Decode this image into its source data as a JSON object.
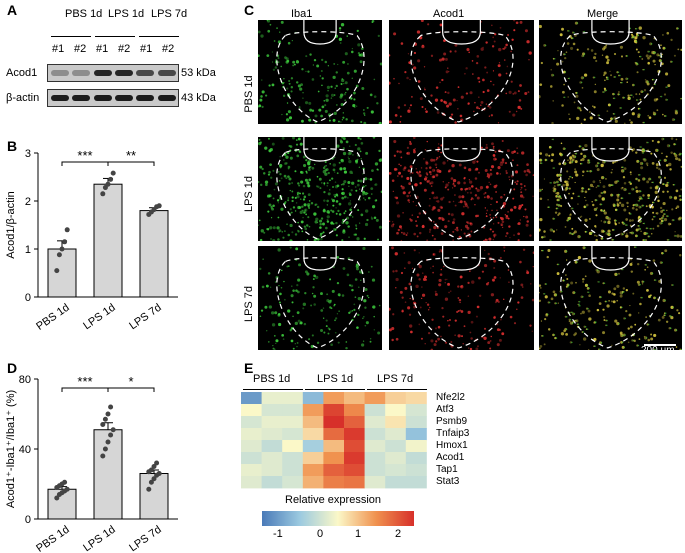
{
  "panel_letters": {
    "a": "A",
    "b": "B",
    "c": "C",
    "d": "D",
    "e": "E"
  },
  "western": {
    "groups": [
      "PBS 1d",
      "LPS 1d",
      "LPS 7d"
    ],
    "lanes": [
      "#1",
      "#2",
      "#1",
      "#2",
      "#1",
      "#2"
    ],
    "rows": [
      {
        "label": "Acod1",
        "kda": "53 kDa",
        "intensity": [
          0.35,
          0.35,
          0.95,
          0.95,
          0.75,
          0.75
        ]
      },
      {
        "label": "β-actin",
        "kda": "43 kDa",
        "intensity": [
          1,
          1,
          1,
          1,
          1,
          1
        ]
      }
    ]
  },
  "chart_data": [
    {
      "type": "bar",
      "panel": "B",
      "categories": [
        "PBS 1d",
        "LPS 1d",
        "LPS 7d"
      ],
      "values": [
        1.0,
        2.35,
        1.8
      ],
      "errors": [
        0.17,
        0.12,
        0.06
      ],
      "points": [
        [
          0.55,
          0.88,
          1.0,
          1.15,
          1.4
        ],
        [
          2.15,
          2.28,
          2.35,
          2.45,
          2.58
        ],
        [
          1.72,
          1.77,
          1.82,
          1.88,
          1.9
        ]
      ],
      "ylabel": "Acod1/β-actin",
      "ylim": [
        0,
        3
      ],
      "yticks": [
        "0",
        "1",
        "2",
        "3"
      ],
      "significance": [
        {
          "pair": [
            0,
            1
          ],
          "label": "***"
        },
        {
          "pair": [
            1,
            2
          ],
          "label": "**"
        }
      ]
    },
    {
      "type": "bar",
      "panel": "D",
      "categories": [
        "PBS 1d",
        "LPS 1d",
        "LPS 7d"
      ],
      "values": [
        17,
        51,
        26
      ],
      "errors": [
        1.5,
        4,
        2
      ],
      "points": [
        [
          12,
          14,
          15,
          16,
          17,
          18,
          19,
          20,
          21
        ],
        [
          36,
          40,
          44,
          48,
          51,
          54,
          57,
          60,
          64
        ],
        [
          17,
          21,
          23,
          25,
          26,
          27,
          28,
          30,
          32
        ]
      ],
      "ylabel": "Acod1⁺-Iba1⁺/Iba1⁺ (%)",
      "ylim": [
        0,
        80
      ],
      "yticks": [
        "0",
        "40",
        "80"
      ],
      "significance": [
        {
          "pair": [
            0,
            1
          ],
          "label": "***"
        },
        {
          "pair": [
            1,
            2
          ],
          "label": "*"
        }
      ]
    },
    {
      "type": "heatmap",
      "panel": "E",
      "groups": [
        "PBS 1d",
        "LPS 1d",
        "LPS 7d"
      ],
      "genes": [
        "Nfe2l2",
        "Atf3",
        "Psmb9",
        "Tnfaip3",
        "Hmox1",
        "Acod1",
        "Tap1",
        "Stat3"
      ],
      "values": [
        [
          -1.6,
          -0.2,
          -0.2,
          -1.2,
          0.9,
          0.6,
          0.9,
          0.4,
          0.3
        ],
        [
          0.0,
          -0.4,
          -0.4,
          0.9,
          1.8,
          1.1,
          -0.5,
          0.0,
          -0.4
        ],
        [
          -0.4,
          -0.2,
          -0.2,
          0.6,
          2.0,
          1.5,
          -0.3,
          0.2,
          -0.5
        ],
        [
          -0.2,
          -0.3,
          -0.4,
          0.3,
          1.4,
          1.9,
          -0.5,
          -0.3,
          -1.1
        ],
        [
          -0.3,
          -0.6,
          0.0,
          -0.9,
          0.6,
          1.7,
          -0.3,
          -0.5,
          -0.1
        ],
        [
          -0.5,
          -0.3,
          -0.5,
          0.4,
          1.0,
          1.9,
          -0.5,
          -0.3,
          -0.6
        ],
        [
          -0.2,
          -0.3,
          -0.5,
          0.9,
          1.5,
          1.7,
          -0.5,
          -0.4,
          -0.5
        ],
        [
          -0.3,
          -0.6,
          -0.4,
          0.7,
          1.2,
          1.3,
          -0.3,
          -0.6,
          -0.6
        ]
      ],
      "legend_title": "Relative expression",
      "scale_ticks": [
        "-1",
        "0",
        "1",
        "2"
      ],
      "colors": [
        "#4a7ab8",
        "#9ccae0",
        "#fbf8c8",
        "#f0924f",
        "#d7302a"
      ]
    }
  ],
  "microscopy": {
    "columns": [
      "Iba1",
      "Acod1",
      "Merge"
    ],
    "rows": [
      "PBS 1d",
      "LPS 1d",
      "LPS 7d"
    ],
    "density": [
      [
        0.35,
        0.3,
        0.4
      ],
      [
        1.0,
        0.95,
        1.0
      ],
      [
        0.3,
        0.35,
        0.4
      ]
    ],
    "channel_colors": [
      "#3ecf3e",
      "#e03030",
      "#d8c840"
    ],
    "scale_bar": "200 μm"
  }
}
